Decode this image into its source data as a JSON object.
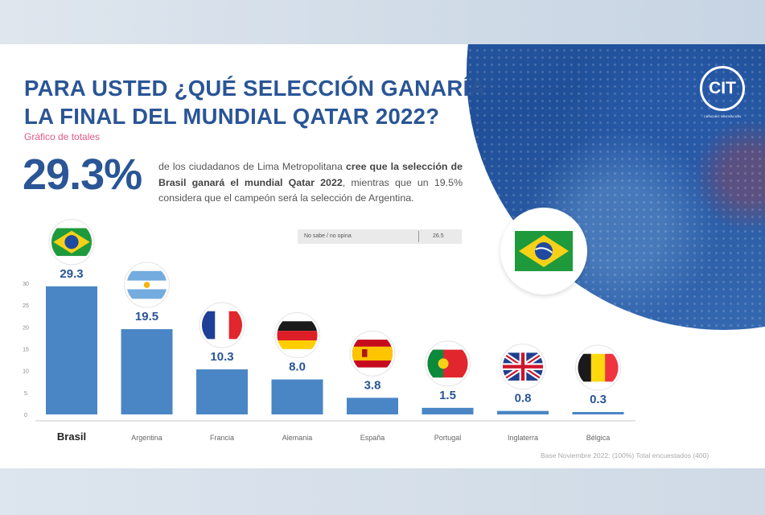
{
  "header": {
    "title_line1": "PARA USTED ¿QUÉ SELECCIÓN GANARÍA",
    "title_line2": "LA FINAL DEL MUNDIAL QATAR 2022?",
    "subtitle": "Gráfico de totales"
  },
  "highlight": {
    "percent": "29.3%",
    "text_a": "de los ciudadanos de Lima Metropolitana ",
    "text_b": "cree que la selección de Brasil ganará el mundial Qatar 2022",
    "text_c": ", mientras que un 19.5% considera que el campeón será la selección de Argentina."
  },
  "no_sabe": {
    "label": "No sabe / no opina",
    "value": "26.5"
  },
  "logo": {
    "text": "CIT",
    "sub": "CIENCIA E INNOVACION"
  },
  "source": "Base Noviembre 2022: (100%) Total encuestados (400)",
  "colors": {
    "bar": "#4a86c5",
    "title": "#2a5596",
    "subtitle": "#e05a86"
  },
  "chart_data": {
    "type": "bar",
    "categories": [
      "Brasil",
      "Argentina",
      "Francia",
      "Alemania",
      "España",
      "Portugal",
      "Inglaterra",
      "Bélgica"
    ],
    "values": [
      29.3,
      19.5,
      10.3,
      8.0,
      3.8,
      1.5,
      0.8,
      0.3
    ],
    "value_labels": [
      "29.3",
      "19.5",
      "10.3",
      "8.0",
      "3.8",
      "1.5",
      "0.8",
      "0.3"
    ],
    "flags": [
      "brazil-flag",
      "argentina-flag",
      "france-flag",
      "germany-flag",
      "spain-flag",
      "portugal-flag",
      "england-flag",
      "belgium-flag"
    ],
    "yticks": [
      0,
      5,
      10,
      15,
      20,
      25,
      30
    ],
    "ylim": [
      0,
      30
    ],
    "grid": false,
    "legend": "none"
  }
}
